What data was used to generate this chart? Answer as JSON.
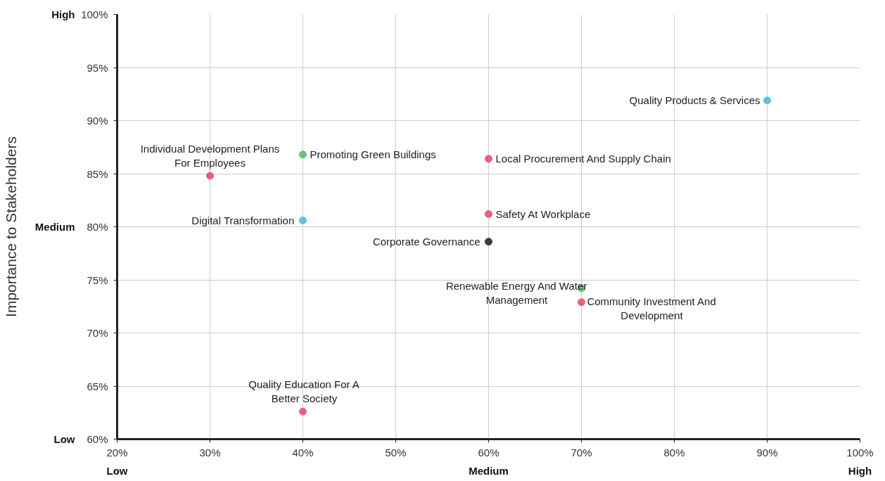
{
  "chart_data": {
    "type": "scatter",
    "ylabel": "Importance to Stakeholders",
    "x": [
      90,
      30,
      40,
      60,
      40,
      60,
      60,
      70,
      70,
      40
    ],
    "values": [
      91.9,
      84.8,
      86.8,
      86.4,
      80.6,
      81.2,
      78.6,
      74.2,
      72.9,
      62.6
    ],
    "colors": [
      "#5bc6d6",
      "#e8607a",
      "#6cc17f",
      "#e8607a",
      "#5bc6d6",
      "#e8607a",
      "#3c3c46",
      "#6cc17f",
      "#e8607a",
      "#e8607a"
    ],
    "marker": "circle",
    "annotations": [
      {
        "text": "Quality Products & Services",
        "x": 90,
        "y": 91.9
      },
      {
        "text": "Individual Development Plans For Employees",
        "x": 30,
        "y": 84.8
      },
      {
        "text": "Promoting Green Buildings",
        "x": 40,
        "y": 86.8
      },
      {
        "text": "Local Procurement And Supply Chain",
        "x": 60,
        "y": 86.4
      },
      {
        "text": "Digital Transformation",
        "x": 40,
        "y": 80.6
      },
      {
        "text": "Safety At Workplace",
        "x": 60,
        "y": 81.2
      },
      {
        "text": "Corporate Governance",
        "x": 60,
        "y": 78.6
      },
      {
        "text": "Renewable Energy And Water Management",
        "x": 70,
        "y": 74.2
      },
      {
        "text": "Community Investment And Development",
        "x": 70,
        "y": 72.9
      },
      {
        "text": "Quality Education For A Better Society",
        "x": 40,
        "y": 62.6
      },
      "Low",
      "Medium",
      "High",
      "Low",
      "Medium",
      "High"
    ],
    "xlim": [
      20,
      100
    ],
    "xticks": [
      {
        "value": 20,
        "label": "20%"
      },
      {
        "value": 30,
        "label": "30%"
      },
      {
        "value": 40,
        "label": "40%"
      },
      {
        "value": 50,
        "label": "50%"
      },
      {
        "value": 60,
        "label": "60%"
      },
      {
        "value": 70,
        "label": "70%"
      },
      {
        "value": 80,
        "label": "80%"
      },
      {
        "value": 90,
        "label": "90%"
      },
      {
        "value": 100,
        "label": "100%"
      }
    ],
    "ylim": [
      60,
      100
    ],
    "yticks": [
      {
        "value": 60,
        "label": "60%"
      },
      {
        "value": 65,
        "label": "65%"
      },
      {
        "value": 70,
        "label": "70%"
      },
      {
        "value": 75,
        "label": "75%"
      },
      {
        "value": 80,
        "label": "80%"
      },
      {
        "value": 85,
        "label": "85%"
      },
      {
        "value": 90,
        "label": "90%"
      },
      {
        "value": 95,
        "label": "95%"
      },
      {
        "value": 100,
        "label": "100%"
      }
    ],
    "grid": true
  }
}
